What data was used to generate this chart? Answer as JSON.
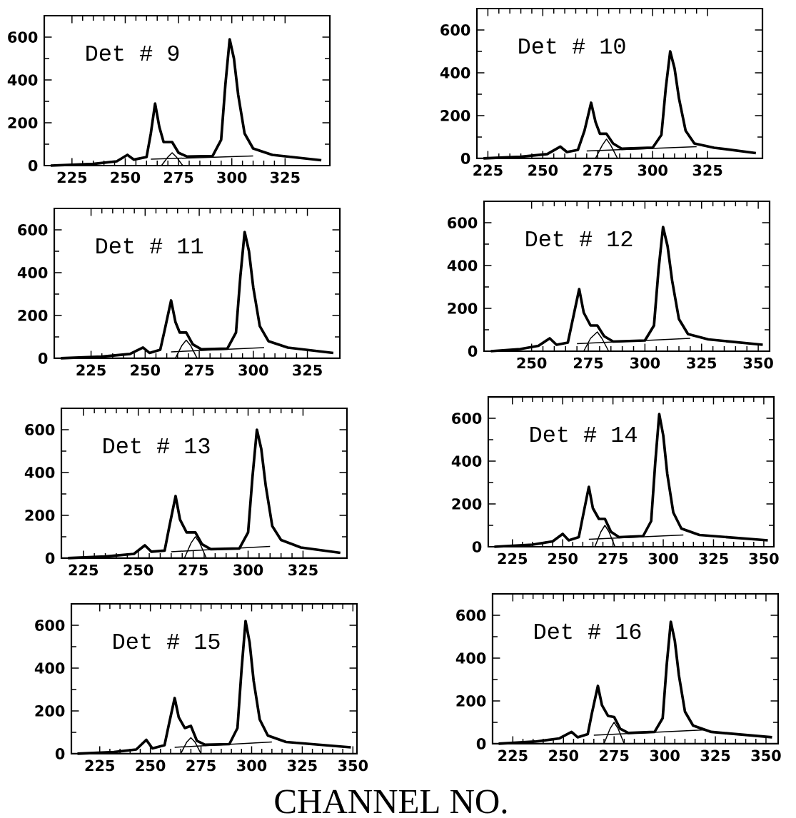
{
  "chart_data": [
    {
      "type": "line",
      "title": "Det # 9",
      "xlim": [
        212,
        346
      ],
      "ylim": [
        0,
        700
      ],
      "xticks": [
        225,
        250,
        275,
        300,
        325
      ],
      "yticks": [
        0,
        200,
        400,
        600
      ],
      "series": [
        {
          "color": "#000000",
          "x": [
            215,
            235,
            246,
            251,
            254,
            260,
            262,
            264,
            266,
            268,
            272,
            275,
            279,
            291,
            295,
            297,
            299,
            301,
            303,
            306,
            310,
            319,
            342
          ],
          "values": [
            0,
            8,
            20,
            50,
            28,
            40,
            150,
            290,
            180,
            110,
            110,
            60,
            42,
            45,
            120,
            380,
            590,
            500,
            330,
            150,
            80,
            50,
            25
          ]
        },
        {
          "color": "#000000",
          "x": [
            267,
            270,
            272,
            274,
            277
          ],
          "values": [
            0,
            40,
            60,
            40,
            0
          ]
        },
        {
          "color": "#000000",
          "x": [
            262,
            310
          ],
          "values": [
            30,
            45
          ]
        }
      ]
    },
    {
      "type": "line",
      "title": "Det # 10",
      "xlim": [
        220,
        350
      ],
      "ylim": [
        0,
        700
      ],
      "xticks": [
        225,
        250,
        275,
        300,
        325
      ],
      "yticks": [
        0,
        200,
        400,
        600
      ],
      "series": [
        {
          "color": "#000000",
          "x": [
            223,
            240,
            252,
            258,
            261,
            266,
            269,
            272,
            274,
            276,
            279,
            282,
            286,
            300,
            304,
            306,
            308,
            310,
            312,
            315,
            319,
            328,
            347
          ],
          "values": [
            0,
            8,
            20,
            55,
            30,
            40,
            130,
            260,
            170,
            115,
            115,
            70,
            45,
            50,
            110,
            330,
            500,
            420,
            280,
            130,
            70,
            50,
            25
          ]
        },
        {
          "color": "#000000",
          "x": [
            274,
            277,
            279,
            281,
            284
          ],
          "values": [
            0,
            60,
            90,
            60,
            0
          ]
        },
        {
          "color": "#000000",
          "x": [
            270,
            320
          ],
          "values": [
            35,
            55
          ]
        }
      ]
    },
    {
      "type": "line",
      "title": "Det # 11",
      "xlim": [
        208,
        340
      ],
      "ylim": [
        0,
        700
      ],
      "xticks": [
        225,
        250,
        275,
        300,
        325
      ],
      "yticks": [
        0,
        200,
        400,
        600
      ],
      "series": [
        {
          "color": "#000000",
          "x": [
            211,
            230,
            243,
            249,
            252,
            257,
            259,
            262,
            264,
            266,
            269,
            272,
            276,
            288,
            292,
            294,
            296,
            298,
            300,
            303,
            307,
            316,
            337
          ],
          "values": [
            0,
            8,
            20,
            50,
            25,
            40,
            130,
            270,
            170,
            120,
            120,
            65,
            42,
            45,
            120,
            380,
            590,
            500,
            330,
            150,
            80,
            50,
            25
          ]
        },
        {
          "color": "#000000",
          "x": [
            264,
            267,
            269,
            271,
            274
          ],
          "values": [
            0,
            60,
            85,
            60,
            0
          ]
        },
        {
          "color": "#000000",
          "x": [
            262,
            305
          ],
          "values": [
            30,
            50
          ]
        }
      ]
    },
    {
      "type": "line",
      "title": "Det # 12",
      "xlim": [
        229,
        355
      ],
      "ylim": [
        0,
        700
      ],
      "xticks": [
        250,
        275,
        300,
        325,
        350
      ],
      "yticks": [
        0,
        200,
        400,
        600
      ],
      "series": [
        {
          "color": "#000000",
          "x": [
            232,
            245,
            253,
            258,
            261,
            266,
            268,
            271,
            273,
            276,
            279,
            282,
            286,
            300,
            304,
            306,
            308,
            310,
            312,
            315,
            319,
            328,
            352
          ],
          "values": [
            0,
            10,
            25,
            60,
            30,
            40,
            140,
            290,
            180,
            120,
            120,
            70,
            45,
            50,
            120,
            380,
            580,
            490,
            330,
            150,
            80,
            55,
            30
          ]
        },
        {
          "color": "#000000",
          "x": [
            273,
            276,
            279,
            281,
            284
          ],
          "values": [
            0,
            60,
            90,
            60,
            0
          ]
        },
        {
          "color": "#000000",
          "x": [
            270,
            320
          ],
          "values": [
            35,
            60
          ]
        }
      ]
    },
    {
      "type": "line",
      "title": "Det # 13",
      "xlim": [
        215,
        345
      ],
      "ylim": [
        0,
        700
      ],
      "xticks": [
        225,
        250,
        275,
        300,
        325
      ],
      "yticks": [
        0,
        200,
        400,
        600
      ],
      "series": [
        {
          "color": "#000000",
          "x": [
            218,
            235,
            248,
            253,
            256,
            262,
            264,
            267,
            269,
            272,
            276,
            279,
            283,
            296,
            300,
            302,
            304,
            306,
            308,
            311,
            315,
            324,
            342
          ],
          "values": [
            0,
            8,
            20,
            60,
            30,
            35,
            140,
            290,
            180,
            120,
            120,
            65,
            42,
            45,
            120,
            380,
            600,
            510,
            340,
            150,
            85,
            50,
            25
          ]
        },
        {
          "color": "#000000",
          "x": [
            271,
            274,
            276,
            278,
            281
          ],
          "values": [
            0,
            70,
            100,
            70,
            0
          ]
        },
        {
          "color": "#000000",
          "x": [
            265,
            310
          ],
          "values": [
            30,
            55
          ]
        }
      ]
    },
    {
      "type": "line",
      "title": "Det # 14",
      "xlim": [
        213,
        355
      ],
      "ylim": [
        0,
        700
      ],
      "xticks": [
        225,
        250,
        275,
        300,
        325,
        350
      ],
      "yticks": [
        0,
        200,
        400,
        600
      ],
      "series": [
        {
          "color": "#000000",
          "x": [
            216,
            235,
            245,
            250,
            253,
            258,
            260,
            263,
            265,
            268,
            271,
            274,
            278,
            290,
            294,
            296,
            298,
            300,
            302,
            305,
            309,
            318,
            352
          ],
          "values": [
            0,
            10,
            25,
            60,
            30,
            45,
            140,
            280,
            180,
            130,
            130,
            70,
            45,
            50,
            120,
            390,
            620,
            520,
            340,
            160,
            85,
            55,
            30
          ]
        },
        {
          "color": "#000000",
          "x": [
            266,
            269,
            271,
            273,
            276
          ],
          "values": [
            0,
            70,
            100,
            70,
            0
          ]
        },
        {
          "color": "#000000",
          "x": [
            263,
            310
          ],
          "values": [
            35,
            55
          ]
        }
      ]
    },
    {
      "type": "line",
      "title": "Det # 15",
      "xlabel": "CHANNEL NO.",
      "xlim": [
        211,
        352
      ],
      "ylim": [
        0,
        700
      ],
      "xticks": [
        225,
        250,
        275,
        300,
        325,
        350
      ],
      "yticks": [
        0,
        200,
        400,
        600
      ],
      "series": [
        {
          "color": "#000000",
          "x": [
            214,
            232,
            243,
            248,
            251,
            257,
            259,
            262,
            264,
            267,
            270,
            273,
            277,
            289,
            293,
            295,
            297,
            299,
            301,
            304,
            308,
            317,
            349
          ],
          "values": [
            0,
            8,
            20,
            65,
            25,
            40,
            130,
            260,
            170,
            120,
            130,
            60,
            42,
            45,
            120,
            390,
            620,
            520,
            340,
            160,
            85,
            55,
            30
          ]
        },
        {
          "color": "#000000",
          "x": [
            265,
            268,
            270,
            272,
            275
          ],
          "values": [
            0,
            55,
            75,
            55,
            0
          ]
        },
        {
          "color": "#000000",
          "x": [
            262,
            310
          ],
          "values": [
            30,
            55
          ]
        }
      ]
    },
    {
      "type": "line",
      "title": "Det # 16",
      "xlim": [
        215,
        356
      ],
      "ylim": [
        0,
        700
      ],
      "xticks": [
        225,
        250,
        275,
        300,
        325,
        350
      ],
      "yticks": [
        0,
        200,
        400,
        600
      ],
      "series": [
        {
          "color": "#000000",
          "x": [
            218,
            236,
            248,
            254,
            257,
            262,
            264,
            267,
            269,
            272,
            275,
            278,
            282,
            295,
            299,
            301,
            303,
            305,
            307,
            310,
            314,
            323,
            353
          ],
          "values": [
            0,
            10,
            25,
            55,
            30,
            45,
            140,
            270,
            180,
            130,
            125,
            70,
            50,
            55,
            120,
            370,
            570,
            480,
            320,
            150,
            85,
            55,
            30
          ]
        },
        {
          "color": "#000000",
          "x": [
            270,
            273,
            275,
            277,
            280
          ],
          "values": [
            0,
            70,
            100,
            70,
            0
          ]
        },
        {
          "color": "#000000",
          "x": [
            265,
            320
          ],
          "values": [
            40,
            65
          ]
        }
      ]
    }
  ]
}
